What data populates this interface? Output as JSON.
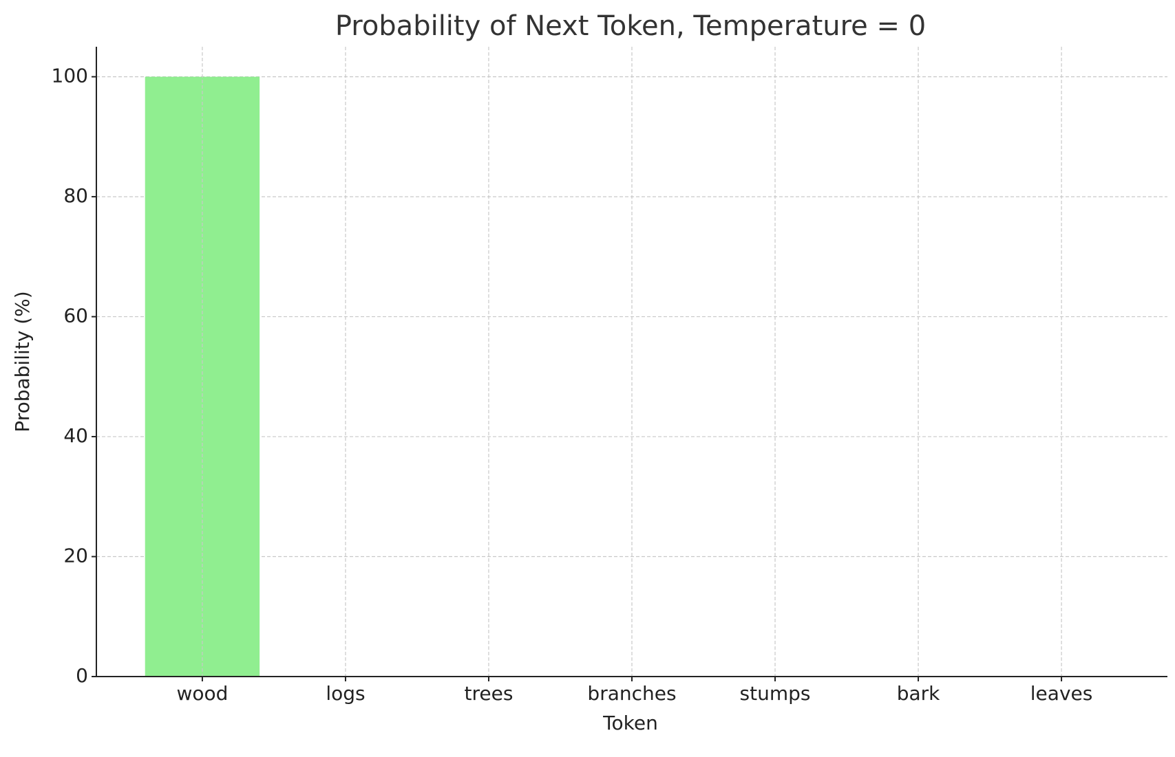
{
  "chart_data": {
    "type": "bar",
    "title": "Probability of Next Token, Temperature = 0",
    "x_label": "Token",
    "y_label": "Probability (%)",
    "categories": [
      "wood",
      "logs",
      "trees",
      "branches",
      "stumps",
      "bark",
      "leaves"
    ],
    "values": [
      100,
      0,
      0,
      0,
      0,
      0,
      0
    ],
    "color": "#90ee90",
    "ylim": [
      0,
      105
    ],
    "yticks": [
      0,
      20,
      40,
      60,
      80,
      100
    ],
    "grid": true
  }
}
